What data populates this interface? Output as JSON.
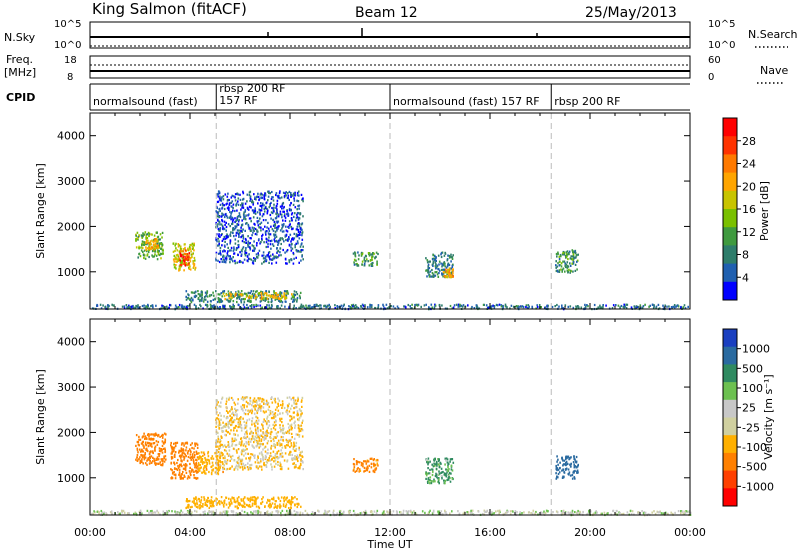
{
  "header": {
    "station": "King Salmon (fitACF)",
    "beam": "Beam 12",
    "date": "25/May/2013"
  },
  "strips": {
    "nsky": {
      "label": "N.Sky",
      "ticks": [
        "10^5",
        "10^0"
      ],
      "right_ticks": [
        "10^5",
        "10^0"
      ],
      "right_label": "N.Search"
    },
    "freq": {
      "label_line1": "Freq.",
      "label_line2": "[MHz]",
      "ticks": [
        "18",
        "8"
      ],
      "right_ticks": [
        "60",
        "0"
      ],
      "right_label": "Nave"
    },
    "cpid": {
      "label": "CPID",
      "segments": [
        {
          "start": 0.0,
          "end": 5.05,
          "text": "normalsound (fast)"
        },
        {
          "start": 5.05,
          "end": 12.0,
          "text": "rbsp 200 RF",
          "text2": "157 RF"
        },
        {
          "start": 12.0,
          "end": 18.45,
          "text": "normalsound (fast) 157 RF"
        },
        {
          "start": 18.45,
          "end": 24.0,
          "text": "rbsp 200 RF"
        }
      ]
    }
  },
  "x_axis": {
    "label": "Time UT",
    "ticks": [
      "00:00",
      "04:00",
      "08:00",
      "12:00",
      "16:00",
      "20:00",
      "00:00"
    ]
  },
  "power_colorbar": {
    "label": "Power [dB]",
    "ticks": [
      "28",
      "24",
      "20",
      "16",
      "12",
      "8",
      "4"
    ],
    "colors": [
      "#ff0000",
      "#ff3300",
      "#ff7a00",
      "#ffa500",
      "#c8c400",
      "#7ac000",
      "#3f9a3f",
      "#2e7d6b",
      "#2060b0",
      "#0000ff"
    ]
  },
  "velocity_colorbar": {
    "label": "Velocity [m s⁻¹]",
    "ticks": [
      "1000",
      "500",
      "100",
      "25",
      "-25",
      "-100",
      "-500",
      "-1000"
    ],
    "colors": [
      "#1a3fc0",
      "#2a6aa0",
      "#2f8a60",
      "#6cc050",
      "#c8c8c8",
      "#d0d0a0",
      "#ffb000",
      "#ff8000",
      "#ff4000",
      "#ff0000"
    ]
  },
  "chart_data": [
    {
      "type": "heatmap",
      "title": "Power",
      "ylabel": "Slant Range [km]",
      "xlabel": "",
      "xlim": [
        0,
        24
      ],
      "ylim": [
        180,
        4500
      ],
      "yticks": [
        "1000",
        "2000",
        "3000",
        "4000"
      ],
      "clusters": [
        {
          "t0": 1.8,
          "t1": 2.9,
          "r0": 1300,
          "r1": 1900,
          "value": 12
        },
        {
          "t0": 2.2,
          "t1": 2.7,
          "r0": 1500,
          "r1": 1750,
          "value": 20
        },
        {
          "t0": 3.3,
          "t1": 4.2,
          "r0": 1050,
          "r1": 1650,
          "value": 16
        },
        {
          "t0": 3.55,
          "t1": 3.95,
          "r0": 1150,
          "r1": 1500,
          "value": 26
        },
        {
          "t0": 3.8,
          "t1": 8.4,
          "r0": 350,
          "r1": 600,
          "value": 8
        },
        {
          "t0": 5.3,
          "t1": 8.1,
          "r0": 420,
          "r1": 560,
          "value": 18
        },
        {
          "t0": 10.5,
          "t1": 11.5,
          "r0": 1150,
          "r1": 1450,
          "value": 9
        },
        {
          "t0": 13.4,
          "t1": 14.5,
          "r0": 900,
          "r1": 1450,
          "value": 7
        },
        {
          "t0": 14.1,
          "t1": 14.5,
          "r0": 900,
          "r1": 1100,
          "value": 20
        },
        {
          "t0": 18.6,
          "t1": 19.5,
          "r0": 1000,
          "r1": 1500,
          "value": 9
        },
        {
          "t0": 5.0,
          "t1": 8.5,
          "r0": 1200,
          "r1": 2800,
          "value": 4
        },
        {
          "t0": 0.0,
          "t1": 24.0,
          "r0": 200,
          "r1": 300,
          "value": 6
        }
      ]
    },
    {
      "type": "heatmap",
      "title": "Velocity",
      "ylabel": "Slant Range [km]",
      "xlabel": "Time UT",
      "xlim": [
        0,
        24
      ],
      "ylim": [
        180,
        4500
      ],
      "yticks": [
        "1000",
        "2000",
        "3000",
        "4000"
      ],
      "clusters": [
        {
          "t0": 1.8,
          "t1": 3.0,
          "r0": 1300,
          "r1": 2000,
          "value": -500
        },
        {
          "t0": 3.2,
          "t1": 4.3,
          "r0": 1000,
          "r1": 1800,
          "value": -600
        },
        {
          "t0": 4.3,
          "t1": 5.3,
          "r0": 1100,
          "r1": 1600,
          "value": -200
        },
        {
          "t0": 3.8,
          "t1": 8.4,
          "r0": 350,
          "r1": 600,
          "value": -150
        },
        {
          "t0": 5.0,
          "t1": 8.5,
          "r0": 1200,
          "r1": 2800,
          "value": -60
        },
        {
          "t0": 10.5,
          "t1": 11.5,
          "r0": 1150,
          "r1": 1450,
          "value": -300
        },
        {
          "t0": 13.4,
          "t1": 14.5,
          "r0": 900,
          "r1": 1450,
          "value": 80
        },
        {
          "t0": 18.6,
          "t1": 19.5,
          "r0": 1000,
          "r1": 1500,
          "value": 400
        },
        {
          "t0": 0.0,
          "t1": 24.0,
          "r0": 200,
          "r1": 300,
          "value": 0
        }
      ]
    }
  ]
}
